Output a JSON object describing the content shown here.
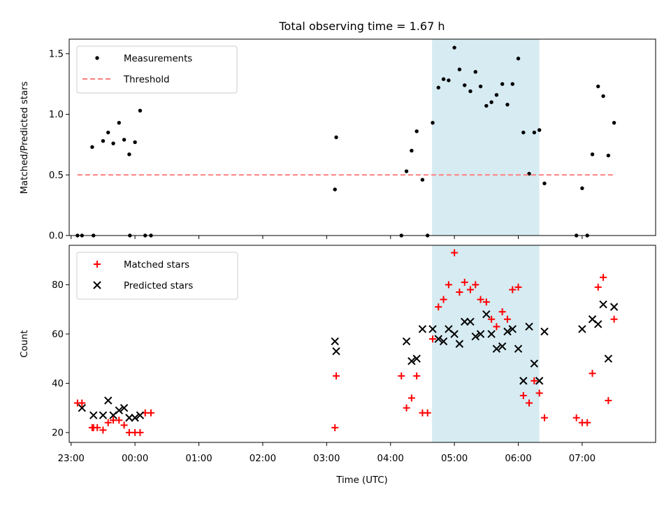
{
  "chart_data": {
    "type": "scatter",
    "title": "Total observing time = 1.67 h",
    "xlabel": "Time (UTC)",
    "x_tick_labels": [
      "23:00",
      "00:00",
      "01:00",
      "02:00",
      "03:00",
      "04:00",
      "05:00",
      "06:00",
      "07:00"
    ],
    "x_tick_values_h": [
      23,
      24,
      25,
      26,
      27,
      28,
      29,
      30,
      31
    ],
    "xlim_h": [
      22.97,
      32.15
    ],
    "highlight_span_h": [
      28.65,
      30.33
    ],
    "highlight_color": "#add8e6",
    "panels": [
      {
        "ylabel": "Matched/Predicted stars",
        "ylim": [
          0,
          1.62
        ],
        "y_ticks": [
          "0.0",
          "0.5",
          "1.0",
          "1.5"
        ],
        "y_tick_values": [
          0,
          0.5,
          1.0,
          1.5
        ],
        "legend": "top-left",
        "series": [
          {
            "name": "Measurements",
            "marker": "dot",
            "color": "#000000",
            "x": [
              23.1,
              23.17,
              23.33,
              23.35,
              23.5,
              23.58,
              23.66,
              23.75,
              23.83,
              23.91,
              23.92,
              24.0,
              24.08,
              24.16,
              24.25,
              27.13,
              27.15,
              28.17,
              28.25,
              28.33,
              28.41,
              28.5,
              28.58,
              28.66,
              28.75,
              28.83,
              28.91,
              29.0,
              29.08,
              29.16,
              29.25,
              29.33,
              29.41,
              29.5,
              29.58,
              29.66,
              29.75,
              29.83,
              29.91,
              30.0,
              30.08,
              30.17,
              30.25,
              30.33,
              30.41,
              30.91,
              31.0,
              31.08,
              31.16,
              31.25,
              31.33,
              31.41,
              31.5
            ],
            "y": [
              0.0,
              0.0,
              0.73,
              0.0,
              0.78,
              0.85,
              0.76,
              0.93,
              0.79,
              0.67,
              0.0,
              0.77,
              1.03,
              0.0,
              0.0,
              0.38,
              0.81,
              0.0,
              0.53,
              0.7,
              0.86,
              0.46,
              0.0,
              0.93,
              1.22,
              1.29,
              1.28,
              1.55,
              1.37,
              1.24,
              1.19,
              1.35,
              1.23,
              1.07,
              1.1,
              1.16,
              1.25,
              1.08,
              1.25,
              1.46,
              0.85,
              0.51,
              0.85,
              0.87,
              0.43,
              0.0,
              0.39,
              0.0,
              0.67,
              1.23,
              1.15,
              0.66,
              0.93
            ]
          },
          {
            "name": "Threshold",
            "marker": "dashed-line",
            "color": "#ff7f7f",
            "x": [
              23.1,
              31.5
            ],
            "y": [
              0.5,
              0.5
            ]
          }
        ]
      },
      {
        "ylabel": "Count",
        "ylim": [
          16,
          96
        ],
        "y_ticks": [
          "20",
          "40",
          "60",
          "80"
        ],
        "y_tick_values": [
          20,
          40,
          60,
          80
        ],
        "legend": "top-left",
        "series": [
          {
            "name": "Matched stars",
            "marker": "plus",
            "color": "#ff0000",
            "x": [
              23.1,
              23.17,
              23.33,
              23.35,
              23.41,
              23.5,
              23.58,
              23.66,
              23.75,
              23.83,
              23.91,
              24.0,
              24.08,
              24.16,
              24.25,
              27.13,
              27.15,
              28.17,
              28.25,
              28.33,
              28.41,
              28.5,
              28.58,
              28.66,
              28.75,
              28.83,
              28.91,
              29.0,
              29.08,
              29.16,
              29.25,
              29.33,
              29.41,
              29.5,
              29.58,
              29.66,
              29.75,
              29.83,
              29.91,
              30.0,
              30.08,
              30.17,
              30.25,
              30.33,
              30.41,
              30.91,
              31.0,
              31.08,
              31.16,
              31.25,
              31.33,
              31.41,
              31.5
            ],
            "y": [
              32,
              32,
              22,
              22,
              22,
              21,
              24,
              25,
              25,
              23,
              20,
              20,
              20,
              28,
              28,
              22,
              43,
              43,
              30,
              34,
              43,
              28,
              28,
              58,
              71,
              74,
              80,
              93,
              77,
              81,
              78,
              80,
              74,
              73,
              66,
              63,
              69,
              66,
              78,
              79,
              35,
              32,
              41,
              36,
              26,
              26,
              24,
              24,
              44,
              79,
              83,
              33,
              66
            ]
          },
          {
            "name": "Predicted stars",
            "marker": "x",
            "color": "#000000",
            "x": [
              23.17,
              23.35,
              23.5,
              23.58,
              23.66,
              23.75,
              23.83,
              23.91,
              24.0,
              24.08,
              27.13,
              27.15,
              28.25,
              28.33,
              28.41,
              28.5,
              28.66,
              28.75,
              28.83,
              28.91,
              29.0,
              29.08,
              29.16,
              29.25,
              29.33,
              29.41,
              29.5,
              29.58,
              29.66,
              29.75,
              29.83,
              29.91,
              30.0,
              30.08,
              30.17,
              30.25,
              30.33,
              30.41,
              31.0,
              31.16,
              31.25,
              31.33,
              31.41,
              31.5
            ],
            "y": [
              30,
              27,
              27,
              33,
              27,
              29,
              30,
              26,
              26,
              27,
              57,
              53,
              57,
              49,
              50,
              62,
              62,
              58,
              57,
              62,
              60,
              56,
              65,
              65,
              59,
              60,
              68,
              60,
              54,
              55,
              61,
              62,
              54,
              41,
              63,
              48,
              41,
              61,
              62,
              66,
              64,
              72,
              50,
              71
            ]
          }
        ]
      }
    ]
  }
}
